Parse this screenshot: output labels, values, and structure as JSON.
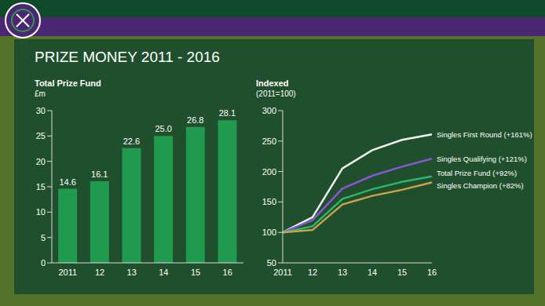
{
  "title": "PRIZE MONEY 2011 - 2016",
  "chart_data": [
    {
      "type": "bar",
      "title": "Total Prize Fund",
      "y_label": "£m",
      "categories": [
        "2011",
        "12",
        "13",
        "14",
        "15",
        "16"
      ],
      "values": [
        14.6,
        16.1,
        22.6,
        25.0,
        26.8,
        28.1
      ],
      "value_labels": [
        "14.6",
        "16.1",
        "22.6",
        "25.0",
        "26.8",
        "28.1"
      ],
      "data_labels": true,
      "color": "#1f9a4e",
      "ylim": [
        0,
        30
      ],
      "yticks": [
        0,
        5,
        10,
        15,
        20,
        25,
        30
      ],
      "grid": false
    },
    {
      "type": "line",
      "title": "Indexed",
      "subtitle": "(2011=100)",
      "categories": [
        "2011",
        "12",
        "13",
        "14",
        "15",
        "16"
      ],
      "ylim": [
        50,
        300
      ],
      "yticks": [
        50,
        100,
        150,
        200,
        250,
        300
      ],
      "grid": false,
      "series": [
        {
          "name": "Singles First Round (+161%)",
          "color": "#f2f2f2",
          "values": [
            100,
            125,
            205,
            235,
            252,
            261
          ]
        },
        {
          "name": "Singles Qualifying (+121%)",
          "color": "#8a55d6",
          "values": [
            100,
            120,
            172,
            193,
            208,
            221
          ]
        },
        {
          "name": "Total Prize Fund (+92%)",
          "color": "#2fb56a",
          "values": [
            100,
            110,
            155,
            171,
            183,
            192
          ]
        },
        {
          "name": "Singles Champion (+82%)",
          "color": "#c9a24e",
          "values": [
            100,
            104,
            146,
            160,
            170,
            182
          ]
        }
      ]
    }
  ]
}
